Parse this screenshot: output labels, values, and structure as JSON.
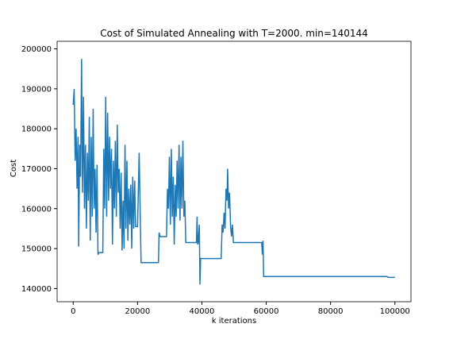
{
  "chart_data": {
    "type": "line",
    "title": "Cost of Simulated Annealing with T=2000. min=140144",
    "xlabel": "k iterations",
    "ylabel": "Cost",
    "xlim": [
      -5000,
      105000
    ],
    "ylim": [
      136700,
      201900
    ],
    "xticks": [
      0,
      20000,
      40000,
      60000,
      80000,
      100000
    ],
    "yticks": [
      140000,
      150000,
      160000,
      170000,
      180000,
      190000,
      200000
    ],
    "grid": false,
    "series": [
      {
        "name": "cost",
        "color": "#1f77b4",
        "x": [
          0,
          300,
          600,
          900,
          1200,
          1500,
          1700,
          2000,
          2300,
          2600,
          2900,
          3200,
          3500,
          3800,
          4100,
          4400,
          4700,
          5000,
          5300,
          5600,
          5900,
          6200,
          6500,
          6800,
          7100,
          7400,
          7700,
          8000,
          9200,
          9500,
          9800,
          10100,
          10400,
          10700,
          11000,
          11300,
          11600,
          11900,
          12200,
          12500,
          12800,
          13100,
          13400,
          13700,
          14000,
          14300,
          14600,
          14900,
          15200,
          15500,
          15800,
          16100,
          16400,
          16700,
          17000,
          17300,
          17600,
          17900,
          18200,
          18500,
          18800,
          19100,
          19400,
          20000,
          20500,
          20800,
          21100,
          26500,
          26700,
          27000,
          29000,
          29300,
          29600,
          29900,
          30200,
          30500,
          30800,
          31100,
          31400,
          31700,
          32000,
          32300,
          32600,
          32900,
          33200,
          33500,
          33800,
          34100,
          34400,
          34700,
          35000,
          38300,
          38500,
          38700,
          38900,
          39200,
          39400,
          39600,
          46000,
          46300,
          46600,
          46900,
          47200,
          47500,
          47800,
          48000,
          48300,
          48600,
          48900,
          49200,
          49500,
          49800,
          58600,
          58800,
          59000,
          59200,
          97500,
          98000,
          100000
        ],
        "values": [
          186000,
          190000,
          172000,
          180000,
          165000,
          178000,
          150500,
          176000,
          168000,
          197500,
          164000,
          188000,
          160000,
          176000,
          155000,
          174000,
          162000,
          183000,
          152000,
          178000,
          158000,
          185000,
          160000,
          170000,
          154000,
          171000,
          148500,
          149000,
          149000,
          175000,
          160000,
          188000,
          158000,
          184000,
          162000,
          178000,
          165000,
          175000,
          151000,
          172000,
          160000,
          177000,
          158000,
          181000,
          164000,
          170000,
          155000,
          169000,
          149500,
          162000,
          150000,
          176000,
          155000,
          172000,
          152000,
          165000,
          156000,
          166000,
          150000,
          168000,
          155000,
          167000,
          155500,
          155500,
          174000,
          160000,
          146500,
          146500,
          154000,
          153000,
          153000,
          165000,
          160000,
          173000,
          156000,
          175000,
          158000,
          168000,
          151000,
          166000,
          158000,
          172000,
          160000,
          176000,
          157000,
          173000,
          160000,
          177000,
          158000,
          162000,
          151500,
          151500,
          158000,
          151000,
          151500,
          156000,
          141000,
          147500,
          147500,
          156000,
          154000,
          159000,
          155000,
          165000,
          162000,
          170000,
          160000,
          164000,
          156000,
          153000,
          156000,
          151500,
          151500,
          148500,
          152000,
          143000,
          143000,
          142800,
          142800
        ]
      }
    ]
  }
}
